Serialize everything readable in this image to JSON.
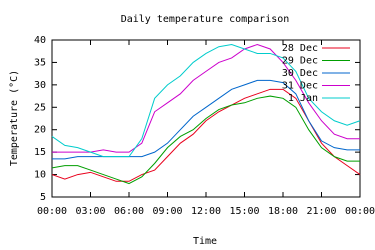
{
  "chart_data": {
    "type": "line",
    "title": "Daily temperature comparison",
    "x_label": "Time",
    "y_label": "Temperature (°C)",
    "x": [
      0,
      1,
      2,
      3,
      4,
      5,
      6,
      7,
      8,
      9,
      10,
      11,
      12,
      13,
      14,
      15,
      16,
      17,
      18,
      19,
      20,
      21,
      22,
      23,
      24
    ],
    "xlim": [
      0,
      24
    ],
    "xticks": [
      {
        "value": 0,
        "label": "00:00"
      },
      {
        "value": 3,
        "label": "03:00"
      },
      {
        "value": 6,
        "label": "06:00"
      },
      {
        "value": 9,
        "label": "09:00"
      },
      {
        "value": 12,
        "label": "12:00"
      },
      {
        "value": 15,
        "label": "15:00"
      },
      {
        "value": 18,
        "label": "18:00"
      },
      {
        "value": 21,
        "label": "21:00"
      },
      {
        "value": 24,
        "label": "00:00"
      }
    ],
    "ylim": [
      5,
      40
    ],
    "yticks": [
      5,
      10,
      15,
      20,
      25,
      30,
      35,
      40
    ],
    "grid": false,
    "legend": "top-right",
    "series": [
      {
        "name": "28 Dec",
        "color": "#e8001c",
        "values": [
          10,
          9,
          10,
          10.5,
          9.5,
          8.5,
          8.5,
          10,
          11,
          14,
          17,
          19,
          22,
          24,
          25.5,
          27,
          28,
          29,
          29,
          27,
          22,
          17,
          14,
          12,
          10
        ]
      },
      {
        "name": "29 Dec",
        "color": "#009e00",
        "values": [
          11.5,
          12,
          12,
          11,
          10,
          9,
          8,
          9.5,
          12.5,
          16,
          18.5,
          20,
          22.5,
          24.5,
          25.5,
          26,
          27,
          27.5,
          27,
          25,
          20,
          16,
          14,
          13,
          13
        ]
      },
      {
        "name": "30 Dec",
        "color": "#0066cc",
        "values": [
          13.5,
          13.5,
          14,
          14,
          14,
          14,
          14,
          14,
          15,
          17,
          20,
          23,
          25,
          27,
          29,
          30,
          31,
          31,
          30.5,
          28,
          22,
          17.5,
          16,
          15.5,
          15.5
        ]
      },
      {
        "name": "31 Dec",
        "color": "#cc00cc",
        "values": [
          15,
          15,
          15,
          15,
          15.5,
          15,
          15,
          17,
          24,
          26,
          28,
          31,
          33,
          35,
          36,
          38,
          39,
          38,
          35,
          31,
          26,
          22,
          19,
          18,
          18
        ]
      },
      {
        "name": "1 Jan",
        "color": "#00cccc",
        "values": [
          18.5,
          16.5,
          16,
          15,
          14,
          14,
          14,
          18,
          27,
          30,
          32,
          35,
          37,
          38.5,
          39,
          38,
          37,
          37,
          36,
          33,
          27,
          24,
          22,
          21,
          22
        ]
      }
    ]
  }
}
